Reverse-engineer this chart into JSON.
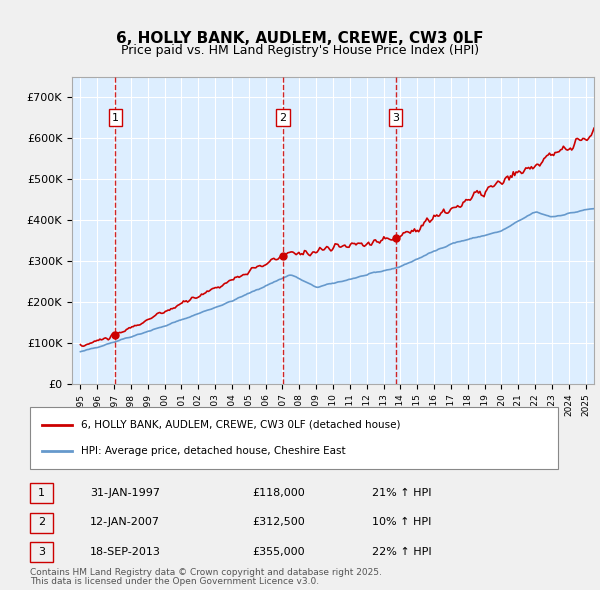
{
  "title": "6, HOLLY BANK, AUDLEM, CREWE, CW3 0LF",
  "subtitle": "Price paid vs. HM Land Registry's House Price Index (HPI)",
  "legend_line1": "6, HOLLY BANK, AUDLEM, CREWE, CW3 0LF (detached house)",
  "legend_line2": "HPI: Average price, detached house, Cheshire East",
  "transactions": [
    {
      "num": 1,
      "date": "31-JAN-1997",
      "price": 118000,
      "pct": "21%",
      "dir": "↑"
    },
    {
      "num": 2,
      "date": "12-JAN-2007",
      "price": 312500,
      "pct": "10%",
      "dir": "↑"
    },
    {
      "num": 3,
      "date": "18-SEP-2013",
      "price": 355000,
      "pct": "22%",
      "dir": "↑"
    }
  ],
  "transaction_dates_decimal": [
    1997.08,
    2007.04,
    2013.72
  ],
  "transaction_prices": [
    118000,
    312500,
    355000
  ],
  "note_line1": "Contains HM Land Registry data © Crown copyright and database right 2025.",
  "note_line2": "This data is licensed under the Open Government Licence v3.0.",
  "price_line_color": "#cc0000",
  "hpi_line_color": "#6699cc",
  "dashed_line_color": "#cc0000",
  "background_color": "#ddeeff",
  "plot_bg_color": "#ddeeff",
  "grid_color": "#ffffff",
  "ylim": [
    0,
    750000
  ],
  "xlim_start": 1994.5,
  "xlim_end": 2025.5,
  "yticks": [
    0,
    100000,
    200000,
    300000,
    400000,
    500000,
    600000,
    700000
  ],
  "ytick_labels": [
    "£0",
    "£100K",
    "£200K",
    "£300K",
    "£400K",
    "£500K",
    "£600K",
    "£700K"
  ],
  "xtick_years": [
    1995,
    1996,
    1997,
    1998,
    1999,
    2000,
    2001,
    2002,
    2003,
    2004,
    2005,
    2006,
    2007,
    2008,
    2009,
    2010,
    2011,
    2012,
    2013,
    2014,
    2015,
    2016,
    2017,
    2018,
    2019,
    2020,
    2021,
    2022,
    2023,
    2024,
    2025
  ]
}
